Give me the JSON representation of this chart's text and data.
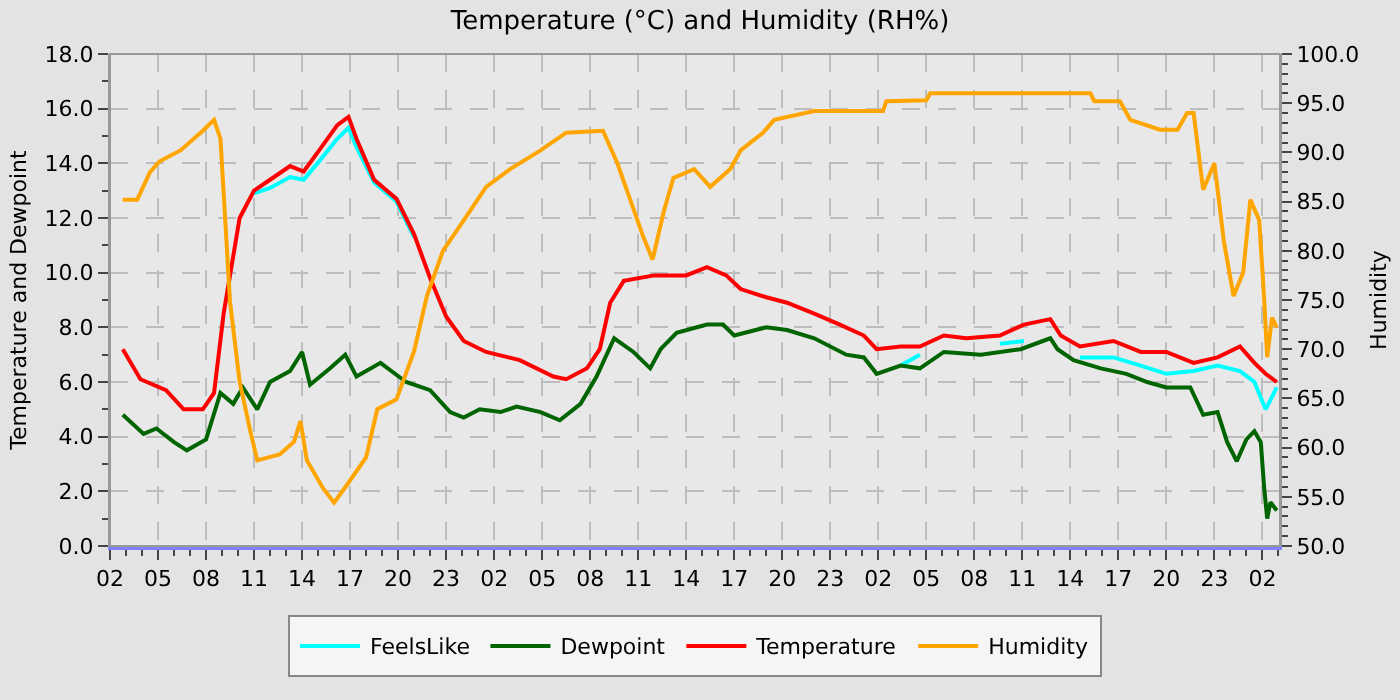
{
  "chart_data": {
    "type": "line",
    "title": "Temperature (°C) and Humidity (RH%)",
    "ylabel": "Temperature and Dewpoint",
    "y2label": "Humidity",
    "xlim": [
      "--01-01T02:00",
      "--01-04T03:06"
    ],
    "xticks": [
      {
        "value": "--01-01T02:00",
        "label": "02"
      },
      {
        "value": "--01-01T05:00",
        "label": "05"
      },
      {
        "value": "--01-01T08:00",
        "label": "08"
      },
      {
        "value": "--01-01T11:00",
        "label": "11"
      },
      {
        "value": "--01-01T14:00",
        "label": "14"
      },
      {
        "value": "--01-01T17:00",
        "label": "17"
      },
      {
        "value": "--01-01T20:00",
        "label": "20"
      },
      {
        "value": "--01-01T23:00",
        "label": "23"
      },
      {
        "value": "--01-02T02:00",
        "label": "02"
      },
      {
        "value": "--01-02T05:00",
        "label": "05"
      },
      {
        "value": "--01-02T08:00",
        "label": "08"
      },
      {
        "value": "--01-02T11:00",
        "label": "11"
      },
      {
        "value": "--01-02T14:00",
        "label": "14"
      },
      {
        "value": "--01-02T17:00",
        "label": "17"
      },
      {
        "value": "--01-02T20:00",
        "label": "20"
      },
      {
        "value": "--01-02T23:00",
        "label": "23"
      },
      {
        "value": "--01-03T02:00",
        "label": "02"
      },
      {
        "value": "--01-03T05:00",
        "label": "05"
      },
      {
        "value": "--01-03T08:00",
        "label": "08"
      },
      {
        "value": "--01-03T11:00",
        "label": "11"
      },
      {
        "value": "--01-03T14:00",
        "label": "14"
      },
      {
        "value": "--01-03T17:00",
        "label": "17"
      },
      {
        "value": "--01-03T20:00",
        "label": "20"
      },
      {
        "value": "--01-03T23:00",
        "label": "23"
      },
      {
        "value": "--01-04T02:00",
        "label": "02"
      }
    ],
    "ylim": [
      0,
      18
    ],
    "yticks": [
      {
        "value": 0,
        "label": "0.0"
      },
      {
        "value": 2,
        "label": "2.0"
      },
      {
        "value": 4,
        "label": "4.0"
      },
      {
        "value": 6,
        "label": "6.0"
      },
      {
        "value": 8,
        "label": "8.0"
      },
      {
        "value": 10,
        "label": "10.0"
      },
      {
        "value": 12,
        "label": "12.0"
      },
      {
        "value": 14,
        "label": "14.0"
      },
      {
        "value": 16,
        "label": "16.0"
      },
      {
        "value": 18,
        "label": "18.0"
      }
    ],
    "y2lim": [
      50,
      100
    ],
    "y2ticks": [
      {
        "value": 50,
        "label": "50.0"
      },
      {
        "value": 55,
        "label": "55.0"
      },
      {
        "value": 60,
        "label": "60.0"
      },
      {
        "value": 65,
        "label": "65.0"
      },
      {
        "value": 70,
        "label": "70.0"
      },
      {
        "value": 75,
        "label": "75.0"
      },
      {
        "value": 80,
        "label": "80.0"
      },
      {
        "value": 85,
        "label": "85.0"
      },
      {
        "value": 90,
        "label": "90.0"
      },
      {
        "value": 95,
        "label": "95.0"
      },
      {
        "value": 100,
        "label": "100.0"
      }
    ],
    "grid": true,
    "legend": "bottom",
    "marker": "none",
    "line_style": "solid",
    "series": [
      {
        "name": "FeelsLike",
        "color": "#00ffff",
        "x": [
          "--01-01T11:00",
          "--01-01T12:00",
          "--01-01T13:15",
          "--01-01T14:06",
          "--01-01T15:06",
          "--01-01T16:12",
          "--01-01T16:54",
          "--01-01T17:24",
          "--01-01T18:30",
          "--01-01T19:54",
          "--01-01T21:00",
          "--01-02T12:00",
          "--01-03T03:24",
          "--01-03T04:36",
          "--01-03T06:06",
          "--01-03T09:36",
          "--01-03T11:06",
          "--01-03T12:45",
          "--01-03T14:36",
          "--01-03T16:42",
          "--01-03T18:24",
          "--01-03T20:00",
          "--01-03T21:42",
          "--01-03T23:12",
          "--01-04T00:36",
          "--01-04T01:30",
          "--01-04T02:12",
          "--01-04T02:54"
        ],
        "values": [
          12.9,
          13.1,
          13.5,
          13.4,
          14.1,
          14.9,
          15.3,
          14.6,
          13.3,
          12.6,
          11.3,
          null,
          6.6,
          7.0,
          null,
          7.4,
          7.5,
          null,
          6.9,
          6.9,
          6.6,
          6.3,
          6.4,
          6.6,
          6.4,
          6.0,
          5.0,
          5.8
        ]
      },
      {
        "name": "Dewpoint",
        "color": "#006400",
        "x": [
          "--01-01T02:48",
          "--01-01T04:06",
          "--01-01T04:54",
          "--01-01T06:00",
          "--01-01T06:48",
          "--01-01T08:00",
          "--01-01T08:54",
          "--01-01T09:42",
          "--01-01T10:18",
          "--01-01T11:12",
          "--01-01T12:00",
          "--01-01T13:15",
          "--01-01T14:00",
          "--01-01T14:30",
          "--01-01T15:45",
          "--01-01T16:42",
          "--01-01T17:24",
          "--01-01T18:54",
          "--01-01T20:30",
          "--01-01T22:00",
          "--01-01T23:15",
          "--01-02T00:06",
          "--01-02T01:06",
          "--01-02T02:24",
          "--01-02T03:24",
          "--01-02T04:54",
          "--01-02T06:06",
          "--01-02T07:24",
          "--01-02T08:24",
          "--01-02T09:30",
          "--01-02T10:42",
          "--01-02T11:45",
          "--01-02T12:24",
          "--01-02T13:24",
          "--01-02T15:18",
          "--01-02T16:18",
          "--01-02T17:00",
          "--01-02T19:00",
          "--01-02T20:18",
          "--01-02T22:00",
          "--01-03T00:00",
          "--01-03T01:06",
          "--01-03T01:54",
          "--01-03T03:24",
          "--01-03T04:36",
          "--01-03T06:06",
          "--01-03T08:24",
          "--01-03T10:54",
          "--01-03T12:45",
          "--01-03T13:12",
          "--01-03T14:12",
          "--01-03T15:54",
          "--01-03T17:30",
          "--01-03T18:48",
          "--01-03T20:00",
          "--01-03T21:30",
          "--01-03T22:18",
          "--01-03T23:12",
          "--01-03T23:48",
          "--01-04T00:24",
          "--01-04T01:00",
          "--01-04T01:30",
          "--01-04T01:54",
          "--01-04T02:06",
          "--01-04T02:18",
          "--01-04T02:30",
          "--01-04T02:54"
        ],
        "values": [
          4.8,
          4.1,
          4.3,
          3.8,
          3.5,
          3.9,
          5.6,
          5.2,
          5.8,
          5.0,
          6.0,
          6.4,
          7.1,
          5.9,
          6.5,
          7.0,
          6.2,
          6.7,
          6.0,
          5.7,
          4.9,
          4.7,
          5.0,
          4.9,
          5.1,
          4.9,
          4.6,
          5.2,
          6.2,
          7.6,
          7.1,
          6.5,
          7.2,
          7.8,
          8.1,
          8.1,
          7.7,
          8.0,
          7.9,
          7.6,
          7.0,
          6.9,
          6.3,
          6.6,
          6.5,
          7.1,
          7.0,
          7.2,
          7.6,
          7.2,
          6.8,
          6.5,
          6.3,
          6.0,
          5.8,
          5.8,
          4.8,
          4.9,
          3.8,
          3.1,
          3.9,
          4.2,
          3.8,
          2.2,
          1.0,
          1.6,
          1.3
        ]
      },
      {
        "name": "Temperature",
        "color": "#ff0000",
        "x": [
          "--01-01T02:48",
          "--01-01T03:54",
          "--01-01T05:30",
          "--01-01T06:36",
          "--01-01T07:48",
          "--01-01T08:30",
          "--01-01T09:06",
          "--01-01T10:06",
          "--01-01T11:00",
          "--01-01T12:00",
          "--01-01T13:15",
          "--01-01T14:06",
          "--01-01T15:06",
          "--01-01T16:12",
          "--01-01T16:54",
          "--01-01T17:24",
          "--01-01T18:30",
          "--01-01T19:54",
          "--01-01T21:00",
          "--01-01T22:00",
          "--01-01T23:00",
          "--01-02T00:06",
          "--01-02T01:30",
          "--01-02T03:36",
          "--01-02T05:42",
          "--01-02T06:30",
          "--01-02T07:48",
          "--01-02T08:36",
          "--01-02T09:15",
          "--01-02T10:06",
          "--01-02T12:00",
          "--01-02T14:00",
          "--01-02T15:18",
          "--01-02T16:30",
          "--01-02T17:24",
          "--01-02T19:00",
          "--01-02T20:18",
          "--01-02T22:00",
          "--01-02T23:36",
          "--01-03T01:06",
          "--01-03T01:54",
          "--01-03T03:24",
          "--01-03T04:36",
          "--01-03T06:06",
          "--01-03T07:30",
          "--01-03T09:36",
          "--01-03T11:06",
          "--01-03T12:45",
          "--01-03T13:24",
          "--01-03T14:36",
          "--01-03T16:42",
          "--01-03T18:24",
          "--01-03T20:00",
          "--01-03T21:42",
          "--01-03T23:12",
          "--01-04T00:36",
          "--01-04T01:30",
          "--01-04T02:12",
          "--01-04T02:54"
        ],
        "values": [
          7.2,
          6.1,
          5.7,
          5.0,
          5.0,
          5.6,
          8.5,
          12.0,
          13.0,
          13.4,
          13.9,
          13.7,
          14.5,
          15.4,
          15.7,
          14.9,
          13.4,
          12.7,
          11.4,
          9.8,
          8.4,
          7.5,
          7.1,
          6.8,
          6.2,
          6.1,
          6.5,
          7.2,
          8.9,
          9.7,
          9.9,
          9.9,
          10.2,
          9.9,
          9.4,
          9.1,
          8.9,
          8.5,
          8.1,
          7.7,
          7.2,
          7.3,
          7.3,
          7.7,
          7.6,
          7.7,
          8.1,
          8.3,
          7.7,
          7.3,
          7.5,
          7.1,
          7.1,
          6.7,
          6.9,
          7.3,
          6.7,
          6.3,
          6.0
        ]
      },
      {
        "name": "Humidity",
        "color": "#ffa500",
        "axis": "y2",
        "x": [
          "--01-01T02:48",
          "--01-01T03:42",
          "--01-01T04:30",
          "--01-01T05:06",
          "--01-01T06:24",
          "--01-01T07:48",
          "--01-01T08:30",
          "--01-01T08:54",
          "--01-01T09:30",
          "--01-01T10:06",
          "--01-01T10:45",
          "--01-01T11:12",
          "--01-01T12:36",
          "--01-01T13:30",
          "--01-01T13:54",
          "--01-01T14:18",
          "--01-01T15:18",
          "--01-01T16:00",
          "--01-01T16:48",
          "--01-01T18:00",
          "--01-01T18:42",
          "--01-01T19:54",
          "--01-01T21:00",
          "--01-01T21:48",
          "--01-01T22:48",
          "--01-02T00:06",
          "--01-02T01:30",
          "--01-02T03:00",
          "--01-02T04:54",
          "--01-02T06:30",
          "--01-02T08:48",
          "--01-02T09:42",
          "--01-02T10:30",
          "--01-02T11:18",
          "--01-02T11:54",
          "--01-02T12:36",
          "--01-02T13:12",
          "--01-02T14:30",
          "--01-02T15:30",
          "--01-02T16:45",
          "--01-02T17:24",
          "--01-02T18:48",
          "--01-02T19:30",
          "--01-02T22:00",
          "--01-03T02:18",
          "--01-03T02:30",
          "--01-03T05:00",
          "--01-03T05:15",
          "--01-03T15:15",
          "--01-03T15:30",
          "--01-03T17:06",
          "--01-03T17:45",
          "--01-03T19:36",
          "--01-03T20:42",
          "--01-03T21:18",
          "--01-03T21:42",
          "--01-03T22:18",
          "--01-03T23:00",
          "--01-03T23:36",
          "--01-04T00:12",
          "--01-04T00:48",
          "--01-04T01:15",
          "--01-04T01:48",
          "--01-04T02:06",
          "--01-04T02:18",
          "--01-04T02:36",
          "--01-04T02:54"
        ],
        "values": [
          85.2,
          85.2,
          88.0,
          89.1,
          90.2,
          92.2,
          93.3,
          91.4,
          74.8,
          66.7,
          61.8,
          58.7,
          59.3,
          60.6,
          62.7,
          58.7,
          55.9,
          54.4,
          56.2,
          59.0,
          63.9,
          64.9,
          69.8,
          75.4,
          80.0,
          83.1,
          86.5,
          88.3,
          90.2,
          92.0,
          92.2,
          88.9,
          85.2,
          81.5,
          79.1,
          84.0,
          87.4,
          88.3,
          86.5,
          88.3,
          90.2,
          92.0,
          93.3,
          94.2,
          94.2,
          95.2,
          95.3,
          96.0,
          96.0,
          95.2,
          95.2,
          93.3,
          92.3,
          92.3,
          94.0,
          94.0,
          86.2,
          88.9,
          80.9,
          75.4,
          77.8,
          85.2,
          83.1,
          75.4,
          69.2,
          73.2,
          72.2
        ]
      }
    ]
  }
}
